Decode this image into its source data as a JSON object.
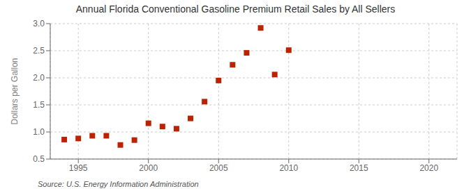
{
  "chart_data": {
    "type": "scatter",
    "title": "Annual Florida Conventional Gasoline Premium Retail Sales by All Sellers",
    "ylabel": "Dollars per Gallon",
    "annotations": [
      "Source: U.S. Energy Information Administration"
    ],
    "x": [
      1994,
      1995,
      1996,
      1997,
      1998,
      1999,
      2000,
      2001,
      2002,
      2003,
      2004,
      2005,
      2006,
      2007,
      2008,
      2009,
      2010
    ],
    "values": [
      0.86,
      0.88,
      0.93,
      0.93,
      0.76,
      0.85,
      1.16,
      1.1,
      1.06,
      1.25,
      1.56,
      1.95,
      2.24,
      2.46,
      2.92,
      2.06,
      2.51
    ],
    "color": "#bb2200",
    "marker": "square",
    "xlim": [
      1993,
      2022
    ],
    "xticks": [
      1995,
      2000,
      2005,
      2010,
      2015,
      2020
    ],
    "ylim": [
      0.5,
      3.0
    ],
    "yticks": [
      0.5,
      {
        "value": 1.0,
        "label": "1.0"
      },
      1.5,
      {
        "value": 2.0,
        "label": "2.0"
      },
      2.5,
      {
        "value": 3.0,
        "label": "3.0"
      }
    ],
    "grid": true
  }
}
